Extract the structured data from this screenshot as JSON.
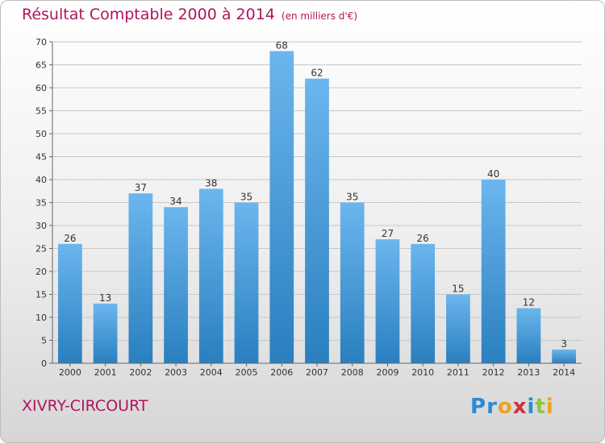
{
  "chart_data": {
    "type": "bar",
    "title": "Résultat Comptable 2000 à 2014",
    "subtitle": "(en milliers d'€)",
    "categories": [
      "2000",
      "2001",
      "2002",
      "2003",
      "2004",
      "2005",
      "2006",
      "2007",
      "2008",
      "2009",
      "2010",
      "2011",
      "2012",
      "2013",
      "2014"
    ],
    "values": [
      26,
      13,
      37,
      34,
      38,
      35,
      68,
      62,
      35,
      27,
      26,
      15,
      40,
      12,
      3
    ],
    "y_ticks": [
      0,
      5,
      10,
      15,
      20,
      25,
      30,
      35,
      40,
      45,
      50,
      55,
      60,
      65,
      70
    ],
    "ylim": [
      0,
      70
    ],
    "grid": true,
    "data_labels": true,
    "colors": {
      "bar_light": "#6bb6ee",
      "bar_dark": "#2a7fbf",
      "title": "#b0145c"
    }
  },
  "footer": {
    "commune": "XIVRY-CIRCOURT",
    "logo_letters": [
      "P",
      "r",
      "o",
      "x",
      "i",
      "t",
      "i"
    ],
    "logo_colors": [
      "#2a8ad4",
      "#2a8ad4",
      "#f0a020",
      "#d2303a",
      "#2a8ad4",
      "#8dc63f",
      "#f0a020"
    ]
  }
}
